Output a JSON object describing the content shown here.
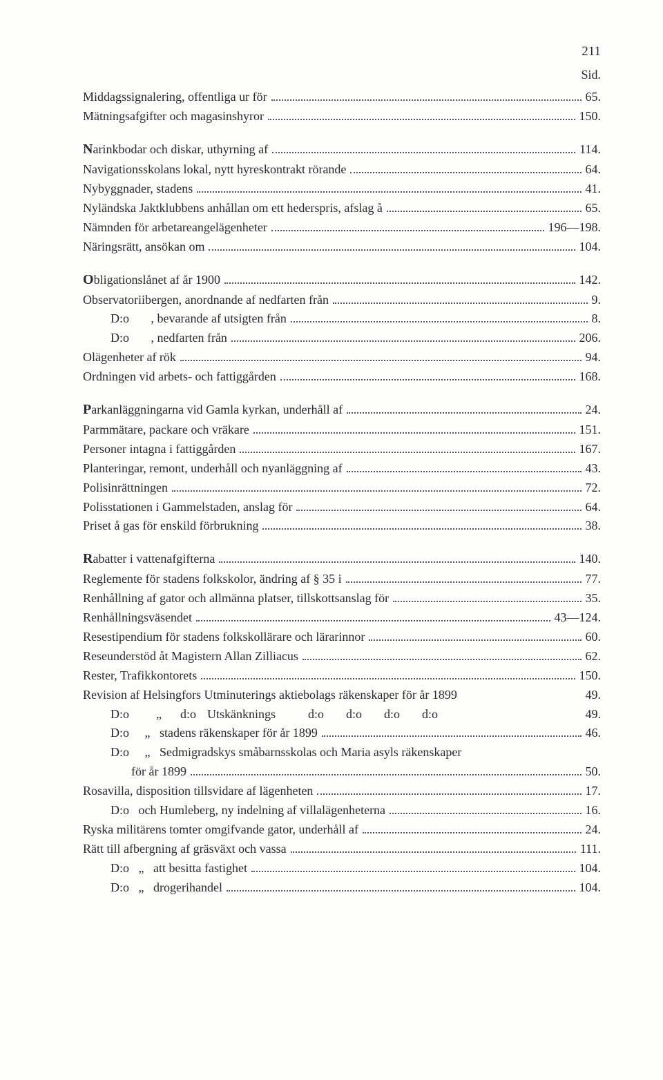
{
  "page_number": "211",
  "sid_label": "Sid.",
  "groups": [
    [
      {
        "text": "Middagssignalering, offentliga ur för",
        "page": "65."
      },
      {
        "text": "Mätningsafgifter och magasinshyror",
        "page": "150."
      }
    ],
    [
      {
        "text": "Narinkbodar och diskar, uthyrning af",
        "page": "114.",
        "initial": "N"
      },
      {
        "text": "Navigationsskolans lokal, nytt hyreskontrakt rörande",
        "page": "64."
      },
      {
        "text": "Nybyggnader, stadens",
        "page": "41."
      },
      {
        "text": "Nyländska Jaktklubbens anhållan om ett hederspris, afslag å",
        "page": "65."
      },
      {
        "text": "Nämnden för arbetareangelägenheter",
        "page": "196—198."
      },
      {
        "text": "Näringsrätt, ansökan om",
        "page": "104."
      }
    ],
    [
      {
        "text": "Obligationslånet af år 1900",
        "page": "142.",
        "initial": "O"
      },
      {
        "text": "Observatoriibergen, anordnande af nedfarten från",
        "page": "9."
      },
      {
        "text": "D:o       , bevarande af utsigten från",
        "page": "8.",
        "indent": 1
      },
      {
        "text": "D:o       , nedfarten från",
        "page": "206.",
        "indent": 1
      },
      {
        "text": "Olägenheter af rök",
        "page": "94."
      },
      {
        "text": "Ordningen vid arbets- och fattiggården",
        "page": "168."
      }
    ],
    [
      {
        "text": "Parkanläggningarna vid Gamla kyrkan, underhåll af",
        "page": "24.",
        "initial": "P"
      },
      {
        "text": "Parmmätare, packare och vräkare",
        "page": "151."
      },
      {
        "text": "Personer intagna i fattiggården",
        "page": "167."
      },
      {
        "text": "Planteringar, remont, underhåll och nyanläggning af",
        "page": "43."
      },
      {
        "text": "Polisinrättningen",
        "page": "72."
      },
      {
        "text": "Polisstationen i Gammelstaden, anslag för",
        "page": "64."
      },
      {
        "text": "Priset å gas för enskild förbrukning",
        "page": "38."
      }
    ],
    [
      {
        "text": "Rabatter i vattenafgifterna",
        "page": "140.",
        "initial": "R"
      },
      {
        "text": "Reglemente för stadens folkskolor, ändring af § 35 i",
        "page": "77."
      },
      {
        "text": "Renhållning af gator och allmänna platser, tillskottsanslag för",
        "page": "35."
      },
      {
        "text": "Renhållningsväsendet",
        "page": "43—124."
      },
      {
        "text": "Resestipendium för stadens folkskollärare och lärarinnor",
        "page": "60."
      },
      {
        "text": "Reseunderstöd åt Magistern Allan Zilliacus",
        "page": "62."
      },
      {
        "text": "Rester, Trafikkontorets",
        "page": "150."
      },
      {
        "text": "Revision af Helsingfors Utminuterings aktiebolags räkenskaper för år 1899",
        "page": "49.",
        "nodots": true
      },
      {
        "special": "do_row",
        "page": "49."
      },
      {
        "text": "D:o     „   stadens räkenskaper för år 1899",
        "page": "46.",
        "indent": 1
      },
      {
        "text": "D:o     „   Sedmigradskys småbarnsskolas och Maria asyls räkenskaper",
        "page": "",
        "indent": 1,
        "nodots": true,
        "nopage": true
      },
      {
        "text": "för år 1899",
        "page": "50.",
        "indent": 2
      },
      {
        "text": "Rosavilla, disposition tillsvidare af lägenheten",
        "page": "17."
      },
      {
        "text": "D:o   och Humleberg, ny indelning af villalägenheterna",
        "page": "16.",
        "indent": 1
      },
      {
        "text": "Ryska militärens tomter omgifvande gator, underhåll af",
        "page": "24."
      },
      {
        "text": "Rätt till afbergning af gräsväxt och vassa",
        "page": "111."
      },
      {
        "text": "D:o   „   att besitta fastighet",
        "page": "104.",
        "indent": 1
      },
      {
        "text": "D:o   „   drogerihandel",
        "page": "104.",
        "indent": 1
      }
    ]
  ],
  "do_row": {
    "c1": "D:o",
    "c2": "„",
    "c3": "d:o",
    "c4": "Utskänknings",
    "c5": "d:o",
    "c6": "d:o",
    "c7": "d:o",
    "c8": "d:o",
    "page": "49."
  }
}
